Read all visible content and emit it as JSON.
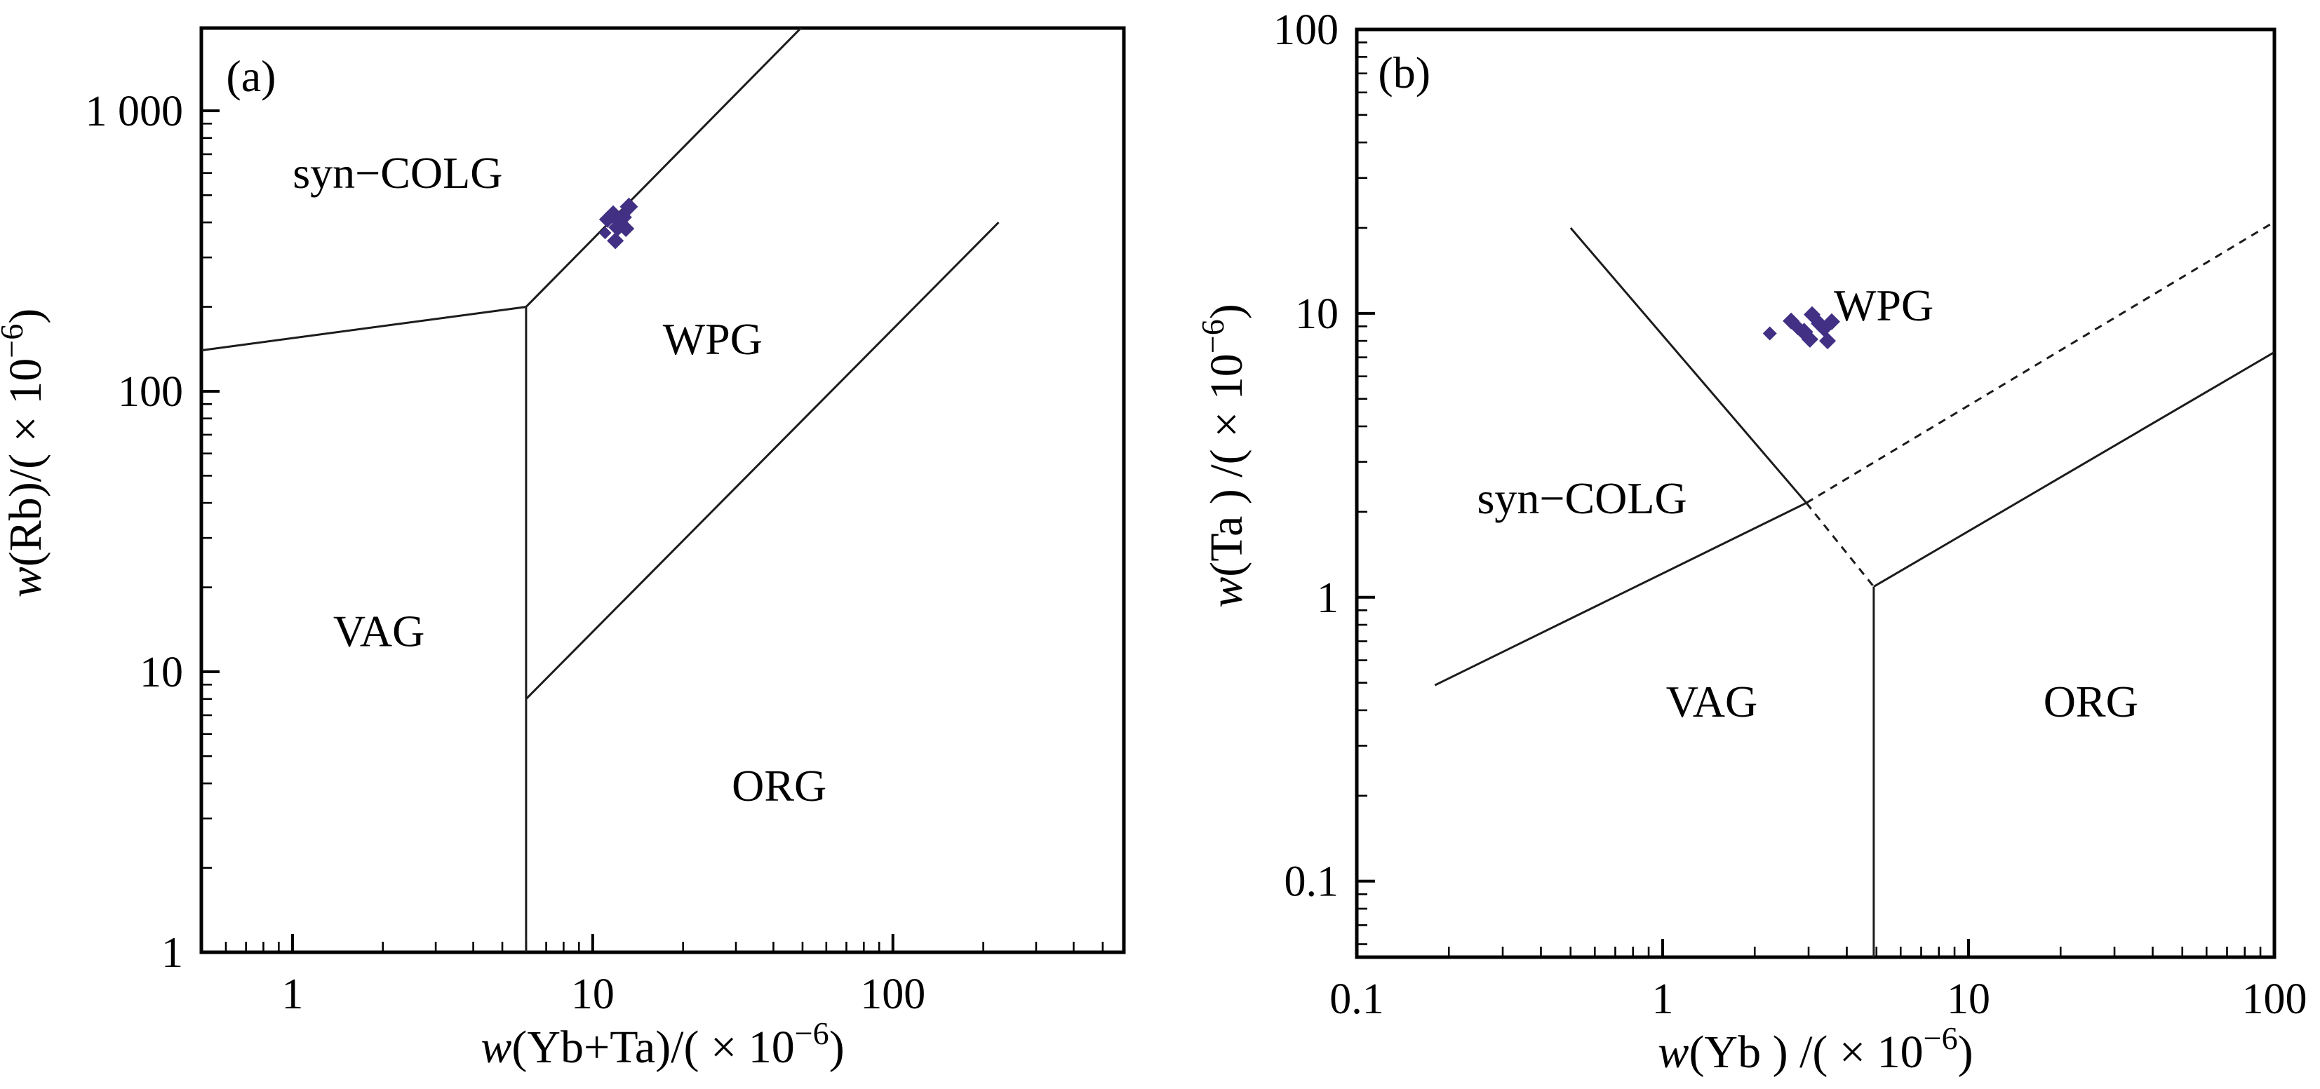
{
  "figure": {
    "background": "#ffffff",
    "line_color": "#1c1c1c",
    "border_color": "#000000",
    "marker_color": "#413083",
    "marker_shape": "diamond-icon"
  },
  "chart_data": [
    {
      "id": "a",
      "type": "scatter",
      "panel_label": "(a)",
      "panel_label_pos": {
        "x": 0.728,
        "y": 1333
      },
      "xlabel": {
        "italic": "w",
        "main": "(Yb+Ta)/( × 10",
        "sup": "−6",
        "close": ")"
      },
      "ylabel": {
        "italic": "w",
        "main": "(Rb)/( × 10",
        "sup": "−6",
        "close": ")"
      },
      "xlim": [
        0.497,
        588
      ],
      "ylim": [
        1,
        1972
      ],
      "grid": false,
      "xticks": [
        {
          "v": 1,
          "label": "1"
        },
        {
          "v": 10,
          "label": "10"
        },
        {
          "v": 100,
          "label": "100"
        }
      ],
      "yticks": [
        {
          "v": 1,
          "label": "1"
        },
        {
          "v": 10,
          "label": "10"
        },
        {
          "v": 100,
          "label": "100"
        },
        {
          "v": 1000,
          "label": "1 000"
        }
      ],
      "boundaries": [
        {
          "name": "syncolg-vag",
          "style": "solid",
          "points": [
            [
              0.5,
              140
            ],
            [
              6,
              200
            ]
          ]
        },
        {
          "name": "vag-wpg-vertical",
          "style": "solid",
          "points": [
            [
              6,
              200
            ],
            [
              6,
              1
            ]
          ]
        },
        {
          "name": "syncolg-wpg",
          "style": "solid",
          "points": [
            [
              6,
              200
            ],
            [
              50,
              2000
            ]
          ]
        },
        {
          "name": "wpg-org",
          "style": "solid",
          "points": [
            [
              6,
              8
            ],
            [
              225,
              400
            ]
          ]
        }
      ],
      "regions": [
        {
          "label": "syn−COLG",
          "x": 2.24,
          "y": 603
        },
        {
          "label": "WPG",
          "x": 25.1,
          "y": 154
        },
        {
          "label": "VAG",
          "x": 1.94,
          "y": 14
        },
        {
          "label": "ORG",
          "x": 41.8,
          "y": 3.94
        }
      ],
      "series": [
        {
          "name": "granite-samples",
          "points": [
            [
              11.7,
              427,
              13
            ],
            [
              13.2,
              455,
              13
            ],
            [
              11.2,
              410,
              12
            ],
            [
              12.2,
              408,
              13
            ],
            [
              12.1,
              384,
              13
            ],
            [
              12.9,
              380,
              12
            ],
            [
              11.0,
              367,
              9
            ],
            [
              11.9,
              344,
              12
            ],
            [
              12.6,
              417,
              13
            ]
          ]
        }
      ]
    },
    {
      "id": "b",
      "type": "scatter",
      "panel_label": "(b)",
      "panel_label_pos": {
        "x": 0.143,
        "y": 70.7
      },
      "xlabel": {
        "italic": "w",
        "main": "(Yb ) /( × 10",
        "sup": "−6",
        "close": ")"
      },
      "ylabel": {
        "italic": "w",
        "main": "(Ta ) /( × 10",
        "sup": "−6",
        "close": ")"
      },
      "xlim": [
        0.1,
        100
      ],
      "ylim": [
        0.054,
        100
      ],
      "grid": false,
      "xticks": [
        {
          "v": 0.1,
          "label": "0.1"
        },
        {
          "v": 1,
          "label": "1"
        },
        {
          "v": 10,
          "label": "10"
        },
        {
          "v": 100,
          "label": "100"
        }
      ],
      "yticks": [
        {
          "v": 0.1,
          "label": "0.1"
        },
        {
          "v": 1,
          "label": "1"
        },
        {
          "v": 10,
          "label": "10"
        },
        {
          "v": 100,
          "label": "100"
        }
      ],
      "boundaries": [
        {
          "name": "syncolg-vag",
          "style": "solid",
          "points": [
            [
              0.18,
              0.49
            ],
            [
              2.95,
              2.15
            ]
          ]
        },
        {
          "name": "syncolg-wpg",
          "style": "solid",
          "points": [
            [
              0.5,
              20
            ],
            [
              2.95,
              2.15
            ]
          ]
        },
        {
          "name": "wpg-inner-dashed",
          "style": "dashed",
          "points": [
            [
              2.95,
              2.15
            ],
            [
              4.9,
              1.09
            ]
          ]
        },
        {
          "name": "anomalous-org-dashed",
          "style": "dashed",
          "points": [
            [
              2.95,
              2.15
            ],
            [
              100,
              21
            ]
          ]
        },
        {
          "name": "vag-org-vertical",
          "style": "solid",
          "points": [
            [
              4.9,
              1.09
            ],
            [
              4.9,
              0.054
            ]
          ]
        },
        {
          "name": "wpg-org",
          "style": "solid",
          "points": [
            [
              4.9,
              1.09
            ],
            [
              100,
              7.3
            ]
          ]
        }
      ],
      "regions": [
        {
          "label": "syn−COLG",
          "x": 0.545,
          "y": 2.24
        },
        {
          "label": "WPG",
          "x": 5.28,
          "y": 10.7
        },
        {
          "label": "VAG",
          "x": 1.447,
          "y": 0.431
        },
        {
          "label": "ORG",
          "x": 25.1,
          "y": 0.431
        }
      ],
      "series": [
        {
          "name": "granite-samples",
          "points": [
            [
              2.24,
              8.5,
              10
            ],
            [
              2.63,
              9.4,
              12
            ],
            [
              3.08,
              9.9,
              12
            ],
            [
              3.25,
              9.2,
              12
            ],
            [
              3.57,
              9.35,
              12
            ],
            [
              2.9,
              8.6,
              13
            ],
            [
              3.03,
              8.1,
              12
            ],
            [
              3.37,
              8.8,
              11
            ],
            [
              3.46,
              8.0,
              12
            ],
            [
              2.77,
              8.9,
              11
            ]
          ]
        }
      ]
    }
  ]
}
